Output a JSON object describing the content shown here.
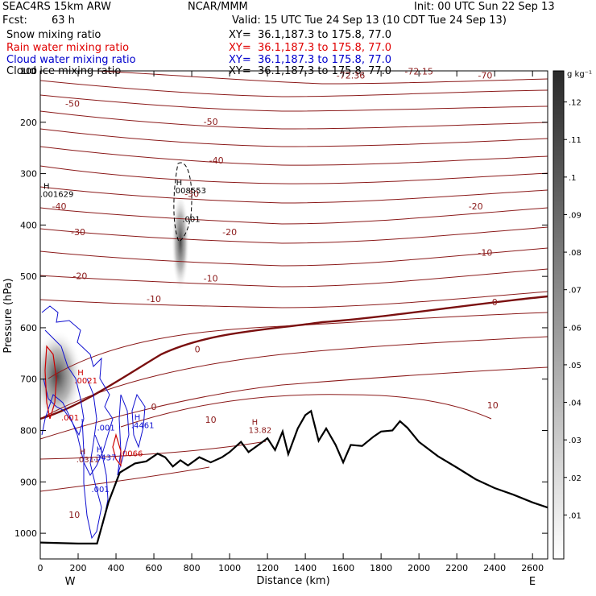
{
  "header": {
    "model": "SEAC4RS 15km ARW",
    "center": "NCAR/MMM",
    "init": "Init: 00 UTC Sun 22 Sep 13",
    "fcst_label": "Fcst:",
    "fcst_value": "63 h",
    "valid": "Valid: 15 UTC Tue 24 Sep 13 (10 CDT Tue 24 Sep 13)"
  },
  "fields": [
    {
      "name": "Snow mixing ratio",
      "xy": "XY=  36.1,187.3 to 175.8, 77.0",
      "color": "#000000"
    },
    {
      "name": "Rain water mixing ratio",
      "xy": "XY=  36.1,187.3 to 175.8, 77.0",
      "color": "#e00000"
    },
    {
      "name": "Cloud water mixing ratio",
      "xy": "XY=  36.1,187.3 to 175.8, 77.0",
      "color": "#0000cc"
    },
    {
      "name": "Cloud ice mixing ratio",
      "xy": "XY=  36.1,187.3 to 175.8, 77.0",
      "color": "#000000"
    }
  ],
  "colors": {
    "temperature": "#8b1a1a",
    "zero_isotherm": "#7a0f0f",
    "cloud_water": "#1010d0",
    "rain": "#cc0000",
    "terrain": "#000000"
  },
  "chart_data": {
    "type": "cross-section",
    "xlabel": "Distance (km)",
    "ylabel": "Pressure (hPa)",
    "xlim": [
      0,
      2680
    ],
    "ylim": [
      1050,
      100
    ],
    "x_ticks": [
      0,
      200,
      400,
      600,
      800,
      1000,
      1200,
      1400,
      1600,
      1800,
      2000,
      2200,
      2400,
      2600
    ],
    "y_ticks": [
      100,
      200,
      300,
      400,
      500,
      600,
      700,
      800,
      900,
      1000
    ],
    "y_tick_labels": [
      "100",
      "200",
      "300",
      "400",
      "500",
      "600",
      "700",
      "800",
      "900",
      "1000"
    ],
    "end_labels": {
      "left": "W",
      "right": "E"
    },
    "colorbar": {
      "unit": "g kg⁻¹",
      "ticks": [
        ".12",
        ".11",
        ".1",
        ".09",
        ".08",
        ".07",
        ".06",
        ".05",
        ".04",
        ".03",
        ".02",
        ".01"
      ],
      "range": [
        0,
        0.13
      ]
    },
    "terrain": [
      [
        0,
        1018
      ],
      [
        200,
        1020
      ],
      [
        300,
        1020
      ],
      [
        360,
        940
      ],
      [
        420,
        882
      ],
      [
        500,
        864
      ],
      [
        560,
        860
      ],
      [
        620,
        845
      ],
      [
        660,
        852
      ],
      [
        700,
        870
      ],
      [
        740,
        858
      ],
      [
        780,
        868
      ],
      [
        840,
        852
      ],
      [
        900,
        862
      ],
      [
        960,
        852
      ],
      [
        1000,
        842
      ],
      [
        1060,
        822
      ],
      [
        1100,
        842
      ],
      [
        1160,
        826
      ],
      [
        1200,
        815
      ],
      [
        1240,
        838
      ],
      [
        1280,
        802
      ],
      [
        1310,
        846
      ],
      [
        1360,
        796
      ],
      [
        1400,
        770
      ],
      [
        1430,
        762
      ],
      [
        1470,
        820
      ],
      [
        1510,
        796
      ],
      [
        1560,
        828
      ],
      [
        1600,
        862
      ],
      [
        1640,
        828
      ],
      [
        1700,
        830
      ],
      [
        1760,
        812
      ],
      [
        1800,
        802
      ],
      [
        1860,
        800
      ],
      [
        1900,
        782
      ],
      [
        1940,
        795
      ],
      [
        2000,
        822
      ],
      [
        2100,
        850
      ],
      [
        2200,
        872
      ],
      [
        2300,
        895
      ],
      [
        2400,
        912
      ],
      [
        2500,
        925
      ],
      [
        2600,
        940
      ],
      [
        2680,
        950
      ]
    ],
    "isotherm_labels": [
      {
        "text": "-72.36",
        "x": 1640,
        "p": 115
      },
      {
        "text": "-72.15",
        "x": 2000,
        "p": 107
      },
      {
        "text": "-70",
        "x": 2350,
        "p": 115
      },
      {
        "text": "-50",
        "x": 170,
        "p": 170
      },
      {
        "text": "-50",
        "x": 900,
        "p": 205
      },
      {
        "text": "-40",
        "x": 100,
        "p": 370
      },
      {
        "text": "-40",
        "x": 930,
        "p": 280
      },
      {
        "text": "-30",
        "x": 200,
        "p": 420
      },
      {
        "text": "-30",
        "x": 800,
        "p": 345
      },
      {
        "text": "-20",
        "x": 210,
        "p": 505
      },
      {
        "text": "-20",
        "x": 1000,
        "p": 420
      },
      {
        "text": "-20",
        "x": 2300,
        "p": 370
      },
      {
        "text": "-10",
        "x": 600,
        "p": 550
      },
      {
        "text": "-10",
        "x": 900,
        "p": 510
      },
      {
        "text": "-10",
        "x": 2350,
        "p": 460
      },
      {
        "text": "0",
        "x": 830,
        "p": 648
      },
      {
        "text": "0",
        "x": 2400,
        "p": 556
      },
      {
        "text": "0",
        "x": 600,
        "p": 760
      },
      {
        "text": "10",
        "x": 900,
        "p": 785
      },
      {
        "text": "10",
        "x": 2390,
        "p": 757
      },
      {
        "text": "10",
        "x": 180,
        "p": 970
      }
    ],
    "maxima": [
      {
        "mark": "H",
        "value": ".001629",
        "x": 0,
        "p": 345,
        "color": "#000000"
      },
      {
        "mark": "H",
        "value": ".008553",
        "x": 700,
        "p": 338,
        "color": "#000000"
      },
      {
        "mark": "",
        "value": ".001",
        "x": 750,
        "p": 394,
        "color": "#000000"
      },
      {
        "mark": "H",
        "value": "13.82",
        "x": 1100,
        "p": 805,
        "color": "#8b1a1a"
      },
      {
        "mark": "H",
        "value": ".0311",
        "x": 190,
        "p": 862,
        "color": "#8b1a1a"
      },
      {
        "mark": "H",
        "value": ".3437",
        "x": 280,
        "p": 858,
        "color": "#1010d0"
      },
      {
        "mark": "H",
        "value": ".4461",
        "x": 480,
        "p": 795,
        "color": "#1010d0"
      },
      {
        "mark": "",
        "value": ".001",
        "x": 300,
        "p": 800,
        "color": "#1010d0"
      },
      {
        "mark": "",
        "value": ".001",
        "x": 270,
        "p": 920,
        "color": "#1010d0"
      },
      {
        "mark": "",
        "value": ".0066",
        "x": 420,
        "p": 850,
        "color": "#cc0000"
      },
      {
        "mark": "",
        "value": ".001",
        "x": 110,
        "p": 780,
        "color": "#cc0000"
      },
      {
        "mark": "H",
        "value": ".0021",
        "x": 180,
        "p": 708,
        "color": "#cc0000"
      }
    ]
  }
}
